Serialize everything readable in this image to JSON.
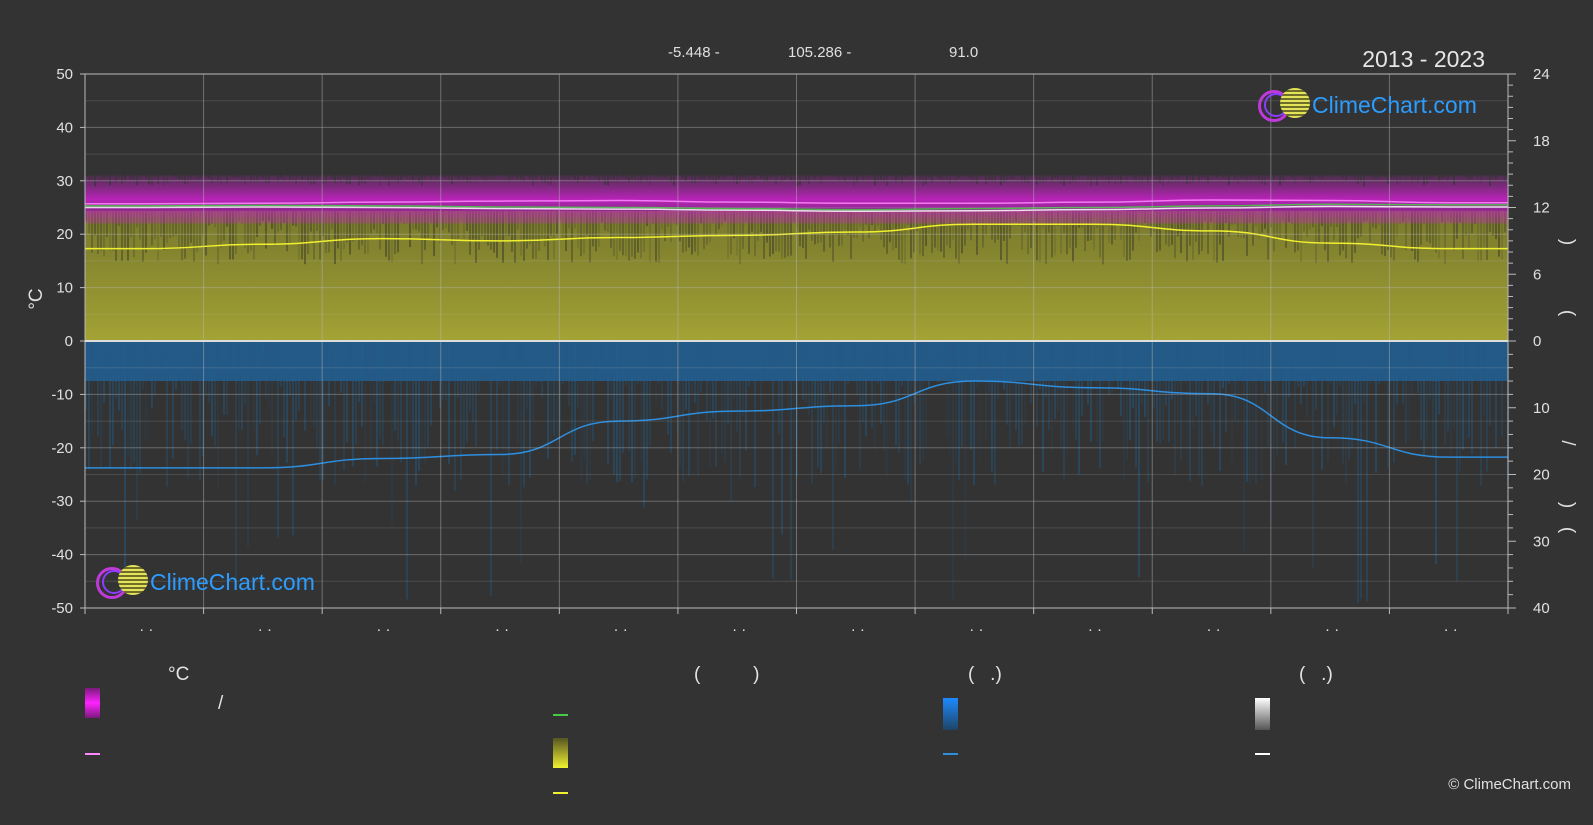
{
  "header": {
    "coord_lat": "-5.448 -",
    "coord_lon": "105.286 -",
    "coord_elev": "91.0",
    "period": "2013 - 2023"
  },
  "logo_text": "ClimeChart.com",
  "copyright": "© ClimeChart.com",
  "legend": {
    "head_temp": "°C",
    "head_sun": "(          )",
    "head_rain": "(   .)",
    "head_snow": "(   .)",
    "slash": "/"
  },
  "colors": {
    "background": "#333333",
    "temp_band": "#d020d0",
    "temp_max_line": "#ff88ff",
    "temp_mean_line": "#44cc44",
    "temp_min_line": "#ffffff",
    "sun_band": "#9a9a30",
    "sun_line": "#f0f030",
    "rain_band": "#1f5f90",
    "rain_line": "#2d8fe0",
    "snow_line": "#ffffff"
  },
  "chart_data": {
    "type": "area",
    "x_labels": [
      "· ·",
      "· ·",
      "· ·",
      "· ·",
      "· ·",
      "· ·",
      "· ·",
      "· ·",
      "· ·",
      "· ·",
      "· ·",
      "· ·"
    ],
    "ylabel_left": "°C",
    "y_left": {
      "range": [
        -50,
        50
      ],
      "ticks": [
        50,
        40,
        30,
        20,
        10,
        0,
        -10,
        -20,
        -30,
        -40,
        -50
      ]
    },
    "y_right_upper": {
      "range": [
        0,
        24
      ],
      "ticks": [
        24,
        18,
        12,
        6,
        0
      ]
    },
    "y_right_lower": {
      "range": [
        0,
        40
      ],
      "ticks": [
        10,
        20,
        30,
        40
      ]
    },
    "right_axis_glyphs": [
      ")",
      "(",
      "/",
      ")",
      "("
    ],
    "grid": true,
    "series": [
      {
        "key": "temp_max",
        "axis": "celsius",
        "x": [
          0,
          1,
          2,
          3,
          4,
          5,
          6,
          7,
          8,
          9,
          10,
          11
        ],
        "values": [
          25.7,
          25.8,
          26.0,
          26.2,
          26.3,
          26.0,
          25.8,
          25.8,
          26.0,
          26.4,
          26.3,
          25.9
        ]
      },
      {
        "key": "temp_mean",
        "axis": "celsius",
        "x": [
          0,
          1,
          2,
          3,
          4,
          5,
          6,
          7,
          8,
          9,
          10,
          11
        ],
        "values": [
          25.3,
          25.4,
          25.3,
          25.1,
          25.0,
          24.8,
          24.6,
          24.8,
          25.0,
          25.3,
          25.6,
          25.5
        ]
      },
      {
        "key": "temp_min",
        "axis": "celsius",
        "x": [
          0,
          1,
          2,
          3,
          4,
          5,
          6,
          7,
          8,
          9,
          10,
          11
        ],
        "values": [
          25.0,
          25.1,
          25.0,
          24.8,
          24.7,
          24.5,
          24.3,
          24.4,
          24.6,
          24.9,
          25.2,
          25.1
        ]
      },
      {
        "key": "sunshine",
        "axis": "hours",
        "x": [
          0,
          1,
          2,
          3,
          4,
          5,
          6,
          7,
          8,
          9,
          10,
          11
        ],
        "values": [
          8.3,
          8.7,
          9.2,
          9.0,
          9.3,
          9.5,
          9.8,
          10.5,
          10.5,
          9.9,
          8.8,
          8.3
        ]
      },
      {
        "key": "precipitation",
        "axis": "mm",
        "x": [
          0,
          1,
          2,
          3,
          4,
          5,
          6,
          7,
          8,
          9,
          10,
          11
        ],
        "values": [
          19.0,
          19.0,
          17.6,
          17.0,
          12.0,
          10.5,
          9.7,
          6.0,
          7.0,
          7.9,
          14.5,
          17.4
        ]
      }
    ]
  }
}
